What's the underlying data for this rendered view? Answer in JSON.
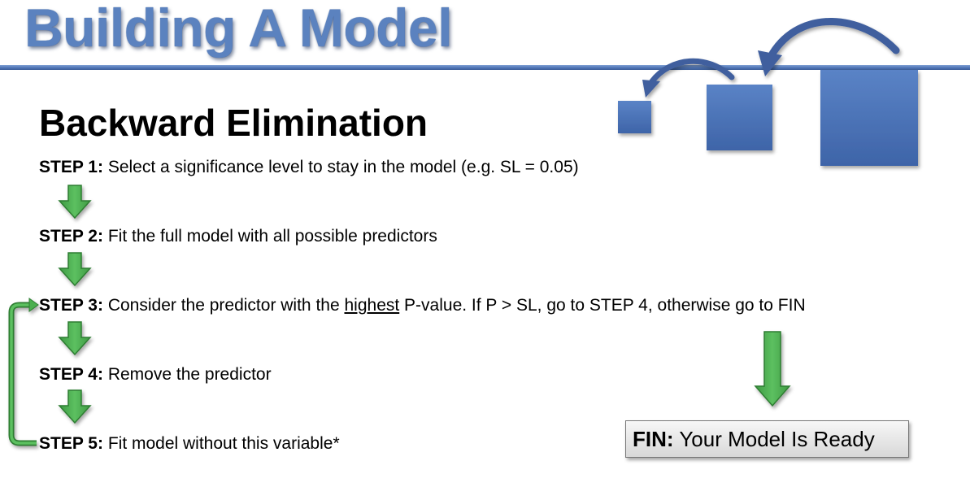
{
  "title": "Building A Model",
  "subtitle": "Backward Elimination",
  "steps": [
    {
      "label": "STEP 1:",
      "text": "Select a significance level to stay in the model (e.g. SL = 0.05)"
    },
    {
      "label": "STEP 2:",
      "text": "Fit the full model with all possible predictors"
    },
    {
      "label": "STEP 3:",
      "text_before": "Consider the predictor with the",
      "emphasis": "highest",
      "text_after": "P-value. If P > SL, go to STEP 4, otherwise go to FIN"
    },
    {
      "label": "STEP 4:",
      "text": "Remove the predictor"
    },
    {
      "label": "STEP 5:",
      "text": "Fit model without this variable*"
    }
  ],
  "fin": {
    "label": "FIN:",
    "text": "Your Model Is Ready"
  },
  "colors": {
    "title_blue": "#5b82bf",
    "square_blue": "#4a72b6",
    "arrow_green": "#4caf50",
    "arrow_green_dark": "#2e7d32"
  }
}
